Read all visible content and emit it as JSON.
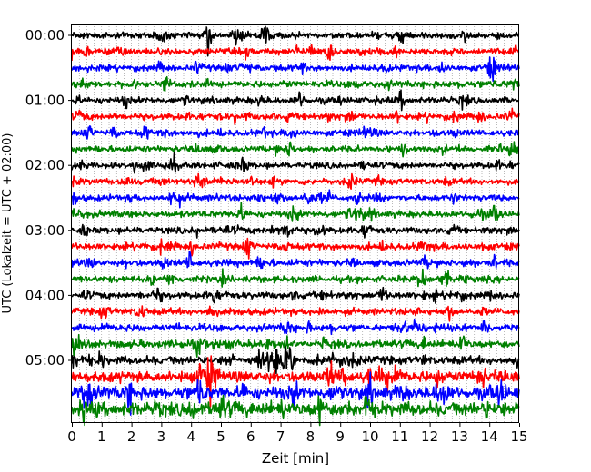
{
  "chart_data": {
    "type": "line",
    "chart_kind": "helicorder (seismogram drum plot)",
    "xlabel": "Zeit  [min]",
    "ylabel": "UTC (Lokalzeit = UTC + 02:00)",
    "xlim": [
      0,
      15
    ],
    "x_ticks": [
      0,
      1,
      2,
      3,
      4,
      5,
      6,
      7,
      8,
      9,
      10,
      11,
      12,
      13,
      14,
      15
    ],
    "x_tick_labels": [
      "0",
      "1",
      "2",
      "3",
      "4",
      "5",
      "6",
      "7",
      "8",
      "9",
      "10",
      "11",
      "12",
      "13",
      "14",
      "15"
    ],
    "y_tick_labels": [
      "00:00",
      "01:00",
      "02:00",
      "03:00",
      "04:00",
      "05:00"
    ],
    "y_tick_rows": [
      0,
      4,
      8,
      12,
      16,
      20
    ],
    "trace_interval_minutes": 15,
    "trace_start_times_utc": [
      "00:00",
      "00:15",
      "00:30",
      "00:45",
      "01:00",
      "01:15",
      "01:30",
      "01:45",
      "02:00",
      "02:15",
      "02:30",
      "02:45",
      "03:00",
      "03:15",
      "03:30",
      "03:45",
      "04:00",
      "04:15",
      "04:30",
      "04:45",
      "05:00",
      "05:15",
      "05:30",
      "05:45"
    ],
    "trace_color_cycle": [
      "#000000",
      "#ff0000",
      "#0000ff",
      "#008000"
    ],
    "noise_amplitude_relative": [
      0.9,
      0.95,
      0.9,
      0.95,
      0.95,
      0.95,
      0.9,
      0.9,
      0.9,
      0.9,
      0.9,
      0.95,
      0.95,
      1.0,
      1.0,
      0.95,
      1.0,
      1.0,
      1.0,
      1.1,
      1.2,
      1.6,
      1.8,
      2.0
    ],
    "events": [
      {
        "trace": 20,
        "start_min": 6.2,
        "end_min": 7.5,
        "amplitude_relative": 3.2
      },
      {
        "trace": 21,
        "start_min": 4.2,
        "end_min": 5.0,
        "amplitude_relative": 2.6
      },
      {
        "trace": 21,
        "start_min": 10.3,
        "end_min": 10.6,
        "amplitude_relative": 2.0
      },
      {
        "trace": 21,
        "start_min": 13.6,
        "end_min": 13.9,
        "amplitude_relative": 2.2
      },
      {
        "trace": 22,
        "start_min": 0.2,
        "end_min": 0.7,
        "amplitude_relative": 2.6
      },
      {
        "trace": 22,
        "start_min": 4.2,
        "end_min": 4.5,
        "amplitude_relative": 2.0
      },
      {
        "trace": 23,
        "start_min": 3.9,
        "end_min": 4.2,
        "amplitude_relative": 1.8
      }
    ],
    "grid": true,
    "grid_x_minor_step_min": 0.25,
    "legend": "none"
  }
}
